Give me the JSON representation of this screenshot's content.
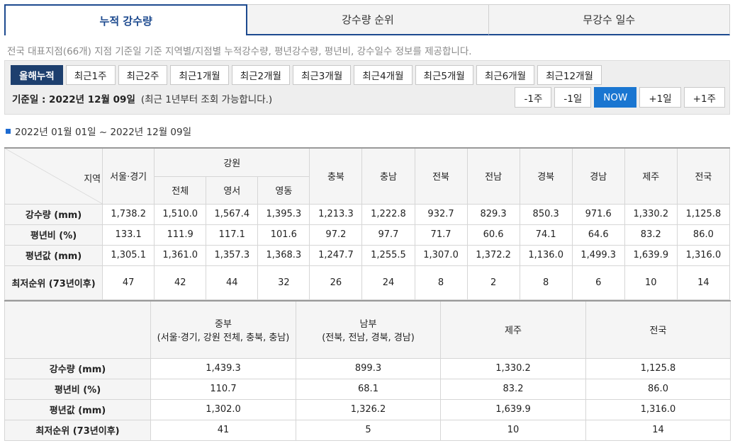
{
  "tabs": [
    "누적 강수량",
    "강수량 순위",
    "무강수 일수"
  ],
  "description": "전국 대표지점(66개) 지점 기준일 기준 지역별/지점별 누적강수량, 평년강수량, 평년비, 강수일수 정보를 제공합니다.",
  "periods": [
    "올해누적",
    "최근1주",
    "최근2주",
    "최근1개월",
    "최근2개월",
    "최근3개월",
    "최근4개월",
    "최근5개월",
    "최근6개월",
    "최근12개월"
  ],
  "base_date_label": "기준일 : 2022년 12월 09일",
  "base_date_note": "(최근 1년부터 조회 가능합니다.)",
  "nav_buttons": [
    "-1주",
    "-1일",
    "NOW",
    "+1일",
    "+1주"
  ],
  "date_range": "2022년 01월 01일 ~ 2022년 12월 09일",
  "table1": {
    "corner": "지역",
    "h_seoul": "서울·경기",
    "h_gangwon": "강원",
    "gangwon_sub": [
      "전체",
      "영서",
      "영동"
    ],
    "regions_rest": [
      "충북",
      "충남",
      "전북",
      "전남",
      "경북",
      "경남",
      "제주",
      "전국"
    ],
    "rows": [
      {
        "label": "강수량 (mm)",
        "values": [
          "1,738.2",
          "1,510.0",
          "1,567.4",
          "1,395.3",
          "1,213.3",
          "1,222.8",
          "932.7",
          "829.3",
          "850.3",
          "971.6",
          "1,330.2",
          "1,125.8"
        ]
      },
      {
        "label": "평년비 (%)",
        "values": [
          "133.1",
          "111.9",
          "117.1",
          "101.6",
          "97.2",
          "97.7",
          "71.7",
          "60.6",
          "74.1",
          "64.6",
          "83.2",
          "86.0"
        ]
      },
      {
        "label": "평년값 (mm)",
        "values": [
          "1,305.1",
          "1,361.0",
          "1,357.3",
          "1,368.3",
          "1,247.7",
          "1,255.5",
          "1,307.0",
          "1,372.2",
          "1,136.0",
          "1,499.3",
          "1,639.9",
          "1,316.0"
        ]
      },
      {
        "label": "최저순위 (73년이후)",
        "values": [
          "47",
          "42",
          "44",
          "32",
          "26",
          "24",
          "8",
          "2",
          "8",
          "6",
          "10",
          "14"
        ]
      }
    ]
  },
  "table2": {
    "headers": [
      {
        "title": "중부",
        "sub": "(서울·경기, 강원 전체, 충북, 충남)"
      },
      {
        "title": "남부",
        "sub": "(전북, 전남, 경북, 경남)"
      },
      {
        "title": "제주",
        "sub": ""
      },
      {
        "title": "전국",
        "sub": ""
      }
    ],
    "rows": [
      {
        "label": "강수량 (mm)",
        "values": [
          "1,439.3",
          "899.3",
          "1,330.2",
          "1,125.8"
        ]
      },
      {
        "label": "평년비 (%)",
        "values": [
          "110.7",
          "68.1",
          "83.2",
          "86.0"
        ]
      },
      {
        "label": "평년값 (mm)",
        "values": [
          "1,302.0",
          "1,326.2",
          "1,639.9",
          "1,316.0"
        ]
      },
      {
        "label": "최저순위 (73년이후)",
        "values": [
          "41",
          "5",
          "10",
          "14"
        ]
      }
    ]
  }
}
